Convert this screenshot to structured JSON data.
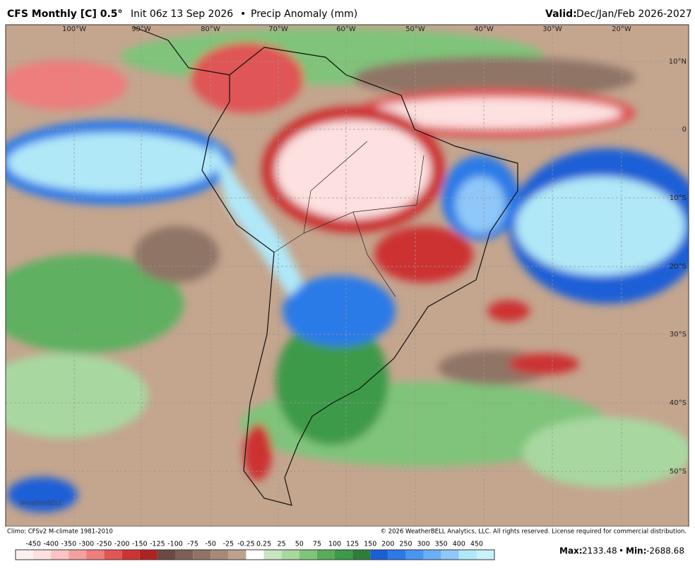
{
  "header": {
    "model": "CFS Monthly [C] 0.5°",
    "init": "Init 06z 13 Sep 2026",
    "separator": "•",
    "field": "Precip Anomaly (mm)",
    "valid_label": "Valid:",
    "valid": "Dec/Jan/Feb 2026-2027"
  },
  "map": {
    "lon_labels": [
      "100°W",
      "90°W",
      "80°W",
      "70°W",
      "60°W",
      "50°W",
      "40°W",
      "30°W",
      "20°W"
    ],
    "lat_labels": [
      "10°N",
      "0",
      "10°S",
      "20°S",
      "30°S",
      "40°S",
      "50°S"
    ],
    "logo": "WeatherBELL"
  },
  "footer": {
    "climo": "Climo: CFSv2 M-climate 1981-2010",
    "copyright": "© 2026 WeatherBELL Analytics, LLC. All rights reserved. License required for commercial distribution."
  },
  "colorbar": {
    "labels": [
      "-450",
      "-400",
      "-350",
      "-300",
      "-250",
      "-200",
      "-150",
      "-125",
      "-100",
      "-75",
      "-50",
      "-25",
      "-0.25",
      "0.25",
      "25",
      "50",
      "75",
      "100",
      "125",
      "150",
      "200",
      "250",
      "300",
      "350",
      "400",
      "450"
    ],
    "colors": [
      "#fff0f0",
      "#fde0e0",
      "#fbc3c3",
      "#f5a0a0",
      "#ee7d7d",
      "#e05555",
      "#cc3333",
      "#b02222",
      "#6b4a45",
      "#7d5f55",
      "#8f7466",
      "#a58a78",
      "#bca28d",
      "#ffffff",
      "#c8e6c0",
      "#a8d8a0",
      "#7fc47a",
      "#58ad58",
      "#3d9a4a",
      "#2d7e3a",
      "#1a5fd6",
      "#2a7ae8",
      "#4a95f0",
      "#6aaff5",
      "#8fc7f8",
      "#b0e8f8",
      "#c8f2fa"
    ]
  },
  "stats": {
    "max_label": "Max:",
    "max": "2133.48",
    "separator": "•",
    "min_label": "Min:",
    "min": "-2688.68"
  }
}
